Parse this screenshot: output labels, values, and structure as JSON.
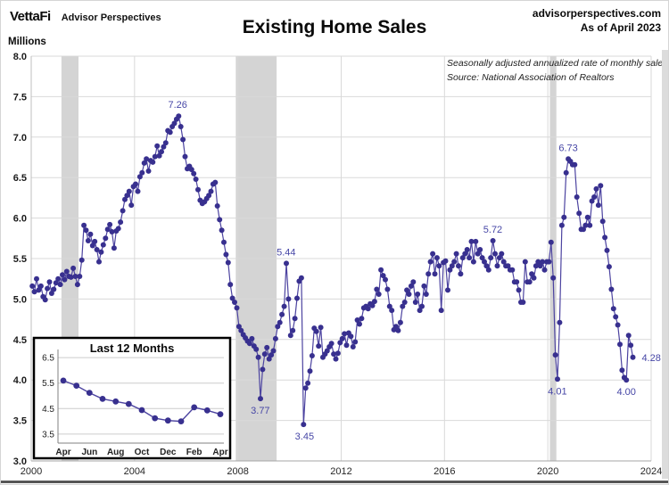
{
  "header": {
    "logo_text": "VettaFi",
    "logo_sub": "Advisor Perspectives",
    "site": "advisorperspectives.com",
    "as_of": "As of April 2023",
    "title": "Existing Home Sales"
  },
  "chart_data": {
    "type": "line",
    "title": "Existing Home Sales",
    "ylabel": "Millions",
    "ylim": [
      3.0,
      8.0
    ],
    "ytick_step": 0.5,
    "yticks": [
      3.0,
      3.5,
      4.0,
      4.5,
      5.0,
      5.5,
      6.0,
      6.5,
      7.0,
      7.5,
      8.0
    ],
    "xlim": [
      2000,
      2024
    ],
    "xticks": [
      2000,
      2004,
      2008,
      2012,
      2016,
      2020,
      2024
    ],
    "notes": [
      "Seasonally adjusted annualized rate of monthly sales",
      "Source: National Association of Realtors"
    ],
    "frequency": "monthly",
    "start_year": 2000,
    "start_month": 1,
    "values": [
      5.16,
      5.09,
      5.25,
      5.11,
      5.16,
      5.03,
      4.99,
      5.13,
      5.21,
      5.07,
      5.12,
      5.2,
      5.25,
      5.18,
      5.3,
      5.24,
      5.34,
      5.28,
      5.27,
      5.38,
      5.28,
      5.18,
      5.28,
      5.48,
      5.91,
      5.85,
      5.72,
      5.8,
      5.66,
      5.71,
      5.61,
      5.46,
      5.58,
      5.67,
      5.75,
      5.86,
      5.92,
      5.83,
      5.63,
      5.84,
      5.87,
      5.95,
      6.09,
      6.23,
      6.28,
      6.33,
      6.16,
      6.39,
      6.42,
      6.33,
      6.51,
      6.56,
      6.68,
      6.73,
      6.58,
      6.71,
      6.69,
      6.76,
      6.89,
      6.77,
      6.82,
      6.88,
      6.93,
      7.08,
      7.06,
      7.13,
      7.17,
      7.22,
      7.26,
      7.13,
      6.97,
      6.76,
      6.61,
      6.64,
      6.6,
      6.55,
      6.48,
      6.35,
      6.22,
      6.18,
      6.2,
      6.24,
      6.28,
      6.33,
      6.42,
      6.44,
      6.15,
      5.98,
      5.85,
      5.7,
      5.55,
      5.45,
      5.18,
      5.01,
      4.96,
      4.89,
      4.66,
      4.61,
      4.56,
      4.52,
      4.48,
      4.45,
      4.51,
      4.42,
      4.38,
      4.28,
      3.77,
      4.13,
      4.32,
      4.4,
      4.26,
      4.31,
      4.36,
      4.51,
      4.66,
      4.71,
      4.81,
      4.91,
      5.44,
      5.0,
      4.55,
      4.61,
      4.76,
      5.01,
      5.22,
      5.26,
      3.45,
      3.9,
      3.96,
      4.11,
      4.3,
      4.64,
      4.6,
      4.42,
      4.65,
      4.28,
      4.32,
      4.36,
      4.41,
      4.45,
      4.32,
      4.26,
      4.33,
      4.46,
      4.51,
      4.57,
      4.43,
      4.58,
      4.54,
      4.41,
      4.47,
      4.74,
      4.69,
      4.76,
      4.89,
      4.91,
      4.88,
      4.94,
      4.92,
      4.97,
      5.12,
      5.06,
      5.36,
      5.29,
      5.24,
      5.12,
      4.91,
      4.86,
      4.62,
      4.66,
      4.61,
      4.71,
      4.91,
      4.96,
      5.11,
      5.06,
      5.16,
      5.21,
      4.96,
      5.06,
      4.86,
      4.91,
      5.16,
      5.06,
      5.31,
      5.46,
      5.56,
      5.31,
      5.51,
      5.41,
      4.86,
      5.45,
      5.47,
      5.11,
      5.36,
      5.41,
      5.46,
      5.56,
      5.41,
      5.31,
      5.51,
      5.56,
      5.61,
      5.51,
      5.71,
      5.46,
      5.71,
      5.56,
      5.61,
      5.51,
      5.46,
      5.41,
      5.36,
      5.51,
      5.72,
      5.56,
      5.41,
      5.51,
      5.56,
      5.46,
      5.41,
      5.41,
      5.36,
      5.36,
      5.21,
      5.21,
      5.11,
      4.96,
      4.96,
      5.46,
      5.21,
      5.21,
      5.31,
      5.26,
      5.41,
      5.46,
      5.41,
      5.46,
      5.36,
      5.46,
      5.46,
      5.7,
      5.26,
      4.31,
      4.01,
      4.71,
      5.91,
      6.01,
      6.56,
      6.73,
      6.7,
      6.66,
      6.66,
      6.26,
      6.06,
      5.86,
      5.86,
      5.91,
      6.01,
      5.91,
      6.21,
      6.26,
      6.36,
      6.16,
      6.4,
      5.96,
      5.76,
      5.6,
      5.4,
      5.12,
      4.88,
      4.78,
      4.68,
      4.44,
      4.12,
      4.03,
      4.0,
      4.55,
      4.43,
      4.28
    ],
    "recessions": [
      [
        2001.17,
        2001.83
      ],
      [
        2007.92,
        2009.5
      ],
      [
        2020.08,
        2020.33
      ]
    ],
    "annotations": [
      {
        "x": 2005.67,
        "value": 7.26,
        "label": "7.26",
        "position": "above"
      },
      {
        "x": 2008.87,
        "value": 3.77,
        "label": "3.77",
        "position": "below"
      },
      {
        "x": 2009.87,
        "value": 5.44,
        "label": "5.44",
        "position": "above"
      },
      {
        "x": 2010.58,
        "value": 3.45,
        "label": "3.45",
        "position": "below"
      },
      {
        "x": 2017.87,
        "value": 5.72,
        "label": "5.72",
        "position": "above"
      },
      {
        "x": 2020.37,
        "value": 4.01,
        "label": "4.01",
        "position": "below"
      },
      {
        "x": 2020.79,
        "value": 6.73,
        "label": "6.73",
        "position": "above"
      },
      {
        "x": 2023.04,
        "value": 4.0,
        "label": "4.00",
        "position": "below"
      },
      {
        "x": 2023.29,
        "value": 4.28,
        "label": "4.28",
        "position": "right"
      }
    ],
    "line_color": "#4c43a0",
    "dot_color": "#38308f",
    "label_color": "#4646a6",
    "grid_color": "#d9d9d9",
    "recession_color": "#d4d4d4"
  },
  "inset": {
    "type": "line",
    "title": "Last 12 Months",
    "ylim": [
      3.25,
      6.75
    ],
    "yticks": [
      3.5,
      4.5,
      5.5,
      6.5
    ],
    "xtick_labels": [
      "Apr",
      "Jun",
      "Aug",
      "Oct",
      "Dec",
      "Feb",
      "Apr"
    ],
    "months": [
      "Apr",
      "May",
      "Jun",
      "Jul",
      "Aug",
      "Sep",
      "Oct",
      "Nov",
      "Dec",
      "Jan",
      "Feb",
      "Mar",
      "Apr"
    ],
    "values": [
      5.6,
      5.4,
      5.12,
      4.88,
      4.78,
      4.68,
      4.44,
      4.12,
      4.03,
      4.0,
      4.55,
      4.43,
      4.28
    ]
  }
}
